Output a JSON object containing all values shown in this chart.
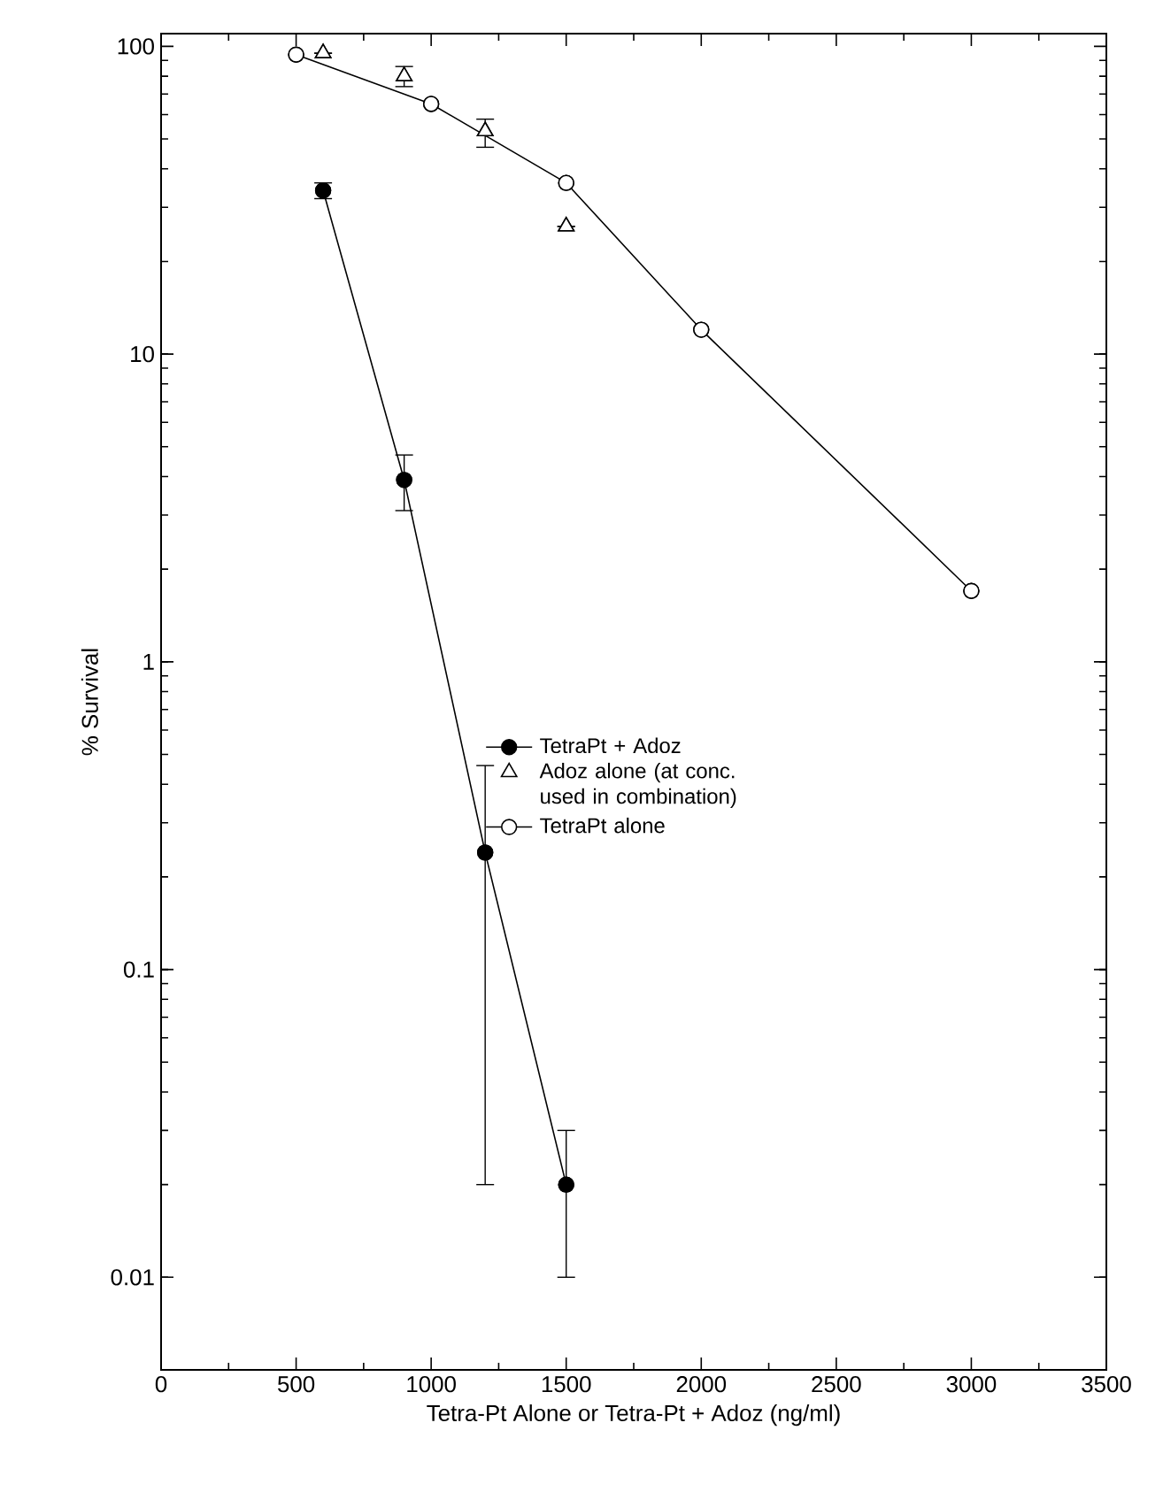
{
  "chart_data": {
    "type": "line",
    "xlabel": "Tetra-Pt Alone or Tetra-Pt + Adoz (ng/ml)",
    "ylabel": "% Survival",
    "log": "y",
    "xlim": [
      0,
      3500
    ],
    "ylim": [
      0.005,
      110
    ],
    "xticks": [
      0,
      500,
      1000,
      1500,
      2000,
      2500,
      3000,
      3500
    ],
    "yticks": [
      {
        "value": 0.01,
        "label": "0.01"
      },
      {
        "value": 0.1,
        "label": "0.1"
      },
      {
        "value": 1,
        "label": "1"
      },
      {
        "value": 10,
        "label": "10"
      },
      {
        "value": 100,
        "label": "100"
      }
    ],
    "grid": false,
    "legend": "right",
    "series": [
      {
        "name": "TetraPt + Adoz",
        "marker": "circle",
        "color": "#000000",
        "colors": [
          "#000000",
          "#000000",
          "#000000",
          "#000000"
        ],
        "x": [
          600,
          900,
          1200,
          1500
        ],
        "values": [
          34,
          3.9,
          0.24,
          0.02
        ],
        "errors": [
          [
            32,
            36
          ],
          [
            3.1,
            4.7
          ],
          [
            0.02,
            0.46
          ],
          [
            0.01,
            0.03
          ]
        ]
      },
      {
        "name": "Adoz alone (at conc. used in combination)",
        "type": "scatter",
        "marker": "triangle",
        "color": "#000000",
        "colors": [
          "#ffffff",
          "#ffffff",
          "#ffffff",
          "#ffffff"
        ],
        "x": [
          600,
          900,
          1200,
          1500
        ],
        "values": [
          95,
          80,
          53,
          26
        ],
        "errors": [
          null,
          [
            74,
            86
          ],
          [
            47,
            58
          ],
          null
        ]
      },
      {
        "name": "TetraPt alone",
        "marker": "circle",
        "color": "#000000",
        "colors": [
          "#ffffff",
          "#ffffff",
          "#ffffff",
          "#ffffff",
          "#ffffff"
        ],
        "x": [
          500,
          1000,
          1500,
          2000,
          3000
        ],
        "values": [
          94,
          65,
          36,
          12,
          1.7
        ]
      }
    ]
  }
}
